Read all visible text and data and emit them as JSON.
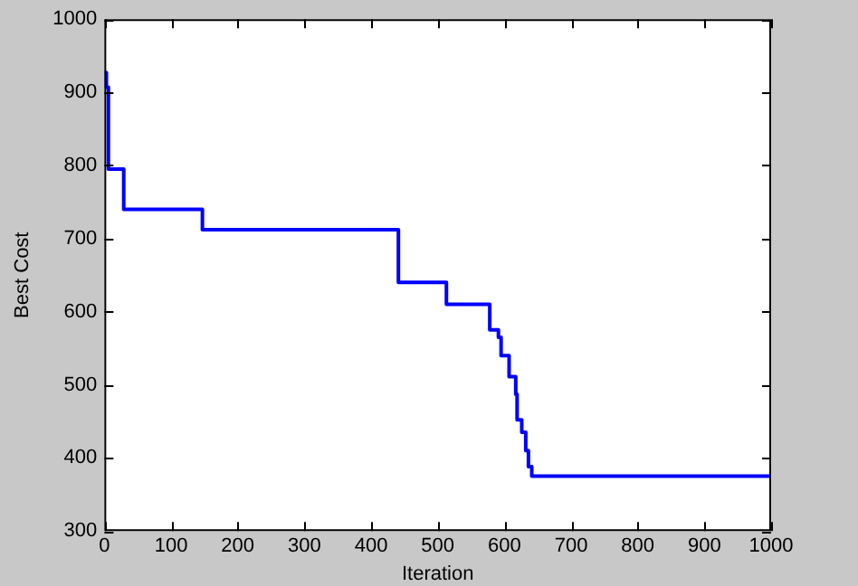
{
  "chart_data": {
    "type": "step",
    "xlabel": "Iteration",
    "ylabel": "Best Cost",
    "x": [
      0,
      3,
      6,
      29,
      147,
      441,
      513,
      578,
      591,
      595,
      607,
      617,
      619,
      626,
      632,
      636,
      641,
      1000
    ],
    "series": [
      {
        "color": "#0000ff",
        "values": [
          927,
          907,
          795,
          740,
          712,
          640,
          610,
          575,
          565,
          540,
          511,
          487,
          452,
          435,
          410,
          388,
          375,
          375
        ]
      }
    ],
    "xlim": [
      0,
      1000
    ],
    "xticks": [
      0,
      100,
      200,
      300,
      400,
      500,
      600,
      700,
      800,
      900,
      1000
    ],
    "ylim": [
      300,
      1000
    ],
    "yticks": [
      300,
      400,
      500,
      600,
      700,
      800,
      900,
      1000
    ],
    "grid": false,
    "legend": false
  }
}
